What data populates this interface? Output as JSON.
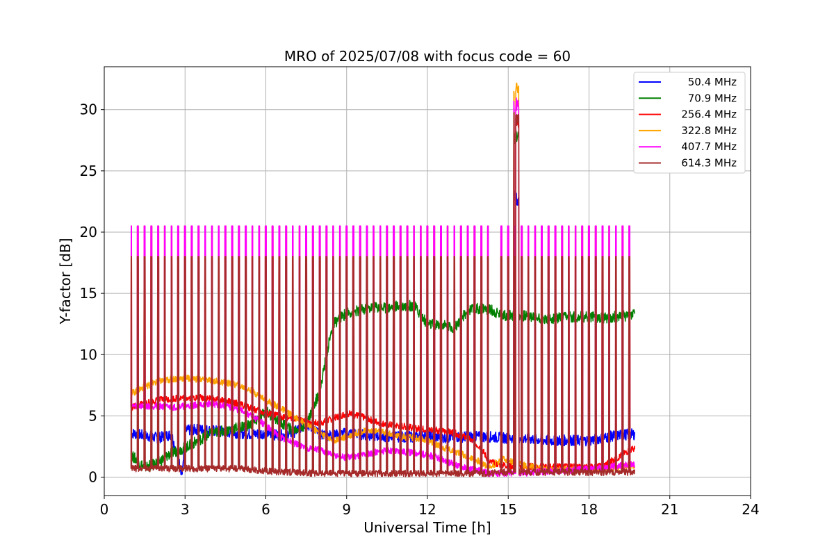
{
  "chart_data": {
    "type": "line",
    "title": "MRO of 2025/07/08 with focus code = 60",
    "xlabel": "Universal Time [h]",
    "ylabel": "Y-factor [dB]",
    "xlim": [
      0,
      24
    ],
    "ylim": [
      -1.5,
      33.5
    ],
    "xticks": [
      0,
      3,
      6,
      9,
      12,
      15,
      18,
      21,
      24
    ],
    "yticks": [
      0,
      5,
      10,
      15,
      20,
      25,
      30
    ],
    "grid": true,
    "legend_position": "top-right",
    "calibration_pulses": {
      "times": [
        1.0,
        1.25,
        1.5,
        1.75,
        2.0,
        2.25,
        2.5,
        2.75,
        3.0,
        3.25,
        3.5,
        3.75,
        4.0,
        4.25,
        4.5,
        4.75,
        5.0,
        5.25,
        5.5,
        5.75,
        6.0,
        6.25,
        6.5,
        6.75,
        7.0,
        7.25,
        7.5,
        7.75,
        8.0,
        8.25,
        8.5,
        8.75,
        9.0,
        9.25,
        9.5,
        9.75,
        10.0,
        10.25,
        10.5,
        10.75,
        11.0,
        11.25,
        11.5,
        11.75,
        12.0,
        12.25,
        12.5,
        12.75,
        13.0,
        13.25,
        13.5,
        13.75,
        14.0,
        14.25,
        14.75,
        15.0,
        15.25,
        15.5,
        15.75,
        16.0,
        16.25,
        16.5,
        16.75,
        17.0,
        17.25,
        17.5,
        17.75,
        18.0,
        18.25,
        18.5,
        18.75,
        19.0,
        19.25,
        19.5
      ],
      "peak_low_dB": 18.0,
      "peak_high_dB": 20.5
    },
    "flare": {
      "time": 15.3,
      "peaks_dB": {
        "50.4 MHz": 22.8,
        "70.9 MHz": 27.8,
        "256.4 MHz": 29.0,
        "322.8 MHz": 31.6,
        "407.7 MHz": 30.5,
        "614.3 MHz": 29.2
      }
    },
    "series": [
      {
        "name": "  50.4 MHz",
        "color": "#0000ff",
        "x": [
          1.0,
          1.5,
          2.0,
          2.5,
          2.9,
          3.0,
          3.5,
          4.0,
          4.5,
          5.0,
          5.5,
          6.0,
          6.5,
          7.0,
          7.5,
          8.0,
          8.5,
          9.0,
          9.5,
          10.0,
          10.5,
          11.0,
          11.5,
          12.0,
          12.5,
          13.0,
          13.5,
          14.0,
          14.3,
          14.8,
          15.5,
          16.0,
          16.5,
          17.0,
          17.5,
          18.0,
          18.5,
          19.0,
          19.5,
          19.7
        ],
        "y": [
          3.6,
          3.4,
          3.2,
          3.5,
          0.2,
          3.8,
          3.9,
          3.8,
          3.7,
          3.6,
          3.5,
          3.6,
          3.4,
          3.6,
          4.4,
          3.5,
          3.4,
          3.6,
          3.5,
          3.4,
          3.3,
          3.3,
          3.3,
          3.4,
          3.2,
          3.3,
          3.3,
          3.3,
          3.3,
          3.2,
          3.2,
          3.1,
          3.0,
          3.0,
          3.0,
          3.0,
          3.2,
          3.4,
          3.5,
          3.5
        ]
      },
      {
        "name": "  70.9 MHz",
        "color": "#008000",
        "x": [
          1.0,
          1.5,
          2.0,
          2.5,
          3.0,
          3.5,
          4.0,
          4.5,
          5.0,
          5.5,
          6.0,
          6.5,
          7.0,
          7.5,
          8.0,
          8.3,
          8.5,
          9.0,
          9.5,
          10.0,
          10.5,
          11.0,
          11.5,
          12.0,
          12.5,
          13.0,
          13.5,
          14.0,
          14.3,
          14.8,
          15.5,
          16.0,
          16.5,
          17.0,
          17.5,
          18.0,
          18.5,
          19.0,
          19.5,
          19.7
        ],
        "y": [
          1.8,
          0.8,
          1.2,
          2.0,
          2.4,
          3.0,
          3.6,
          3.8,
          4.1,
          4.3,
          5.4,
          4.5,
          3.8,
          4.3,
          7.0,
          10.5,
          12.5,
          13.4,
          13.6,
          13.9,
          13.8,
          14.0,
          14.0,
          12.5,
          12.4,
          12.2,
          13.6,
          13.8,
          13.7,
          13.2,
          13.2,
          13.1,
          12.9,
          13.0,
          13.1,
          13.1,
          13.0,
          13.1,
          13.2,
          13.5
        ]
      },
      {
        "name": "256.4 MHz",
        "color": "#ff0000",
        "x": [
          1.0,
          1.5,
          2.0,
          2.5,
          3.0,
          3.5,
          4.0,
          4.5,
          5.0,
          5.5,
          6.0,
          6.5,
          7.0,
          7.5,
          8.0,
          8.5,
          9.0,
          9.5,
          10.0,
          10.5,
          11.0,
          11.5,
          12.0,
          12.5,
          13.0,
          13.5,
          14.0,
          14.3,
          14.8,
          15.5,
          16.0,
          16.5,
          17.0,
          17.5,
          18.0,
          18.5,
          19.0,
          19.5,
          19.7
        ],
        "y": [
          5.7,
          6.0,
          6.3,
          6.4,
          6.5,
          6.5,
          6.4,
          6.2,
          6.0,
          5.6,
          5.2,
          5.0,
          4.8,
          4.5,
          4.4,
          4.8,
          5.2,
          5.0,
          4.6,
          4.3,
          4.2,
          4.0,
          3.9,
          3.8,
          3.6,
          3.2,
          2.4,
          1.2,
          1.0,
          0.8,
          0.9,
          0.8,
          0.9,
          0.8,
          0.8,
          0.9,
          1.5,
          2.2,
          2.3
        ]
      },
      {
        "name": "322.8 MHz",
        "color": "#ffa500",
        "x": [
          1.0,
          1.5,
          2.0,
          2.5,
          3.0,
          3.5,
          4.0,
          4.5,
          5.0,
          5.5,
          6.0,
          6.5,
          7.0,
          7.5,
          8.0,
          8.5,
          9.0,
          9.5,
          10.0,
          10.5,
          11.0,
          11.5,
          12.0,
          12.5,
          13.0,
          13.5,
          14.0,
          14.3,
          14.8,
          15.5,
          16.0,
          16.5,
          17.0,
          17.5,
          18.0,
          18.5,
          19.0,
          19.5,
          19.7
        ],
        "y": [
          6.8,
          7.4,
          7.8,
          8.0,
          8.1,
          8.0,
          7.9,
          7.7,
          7.5,
          7.0,
          6.3,
          5.7,
          5.0,
          4.3,
          3.6,
          3.0,
          3.3,
          3.7,
          3.8,
          3.6,
          3.3,
          3.2,
          3.0,
          2.5,
          2.1,
          1.7,
          1.2,
          0.8,
          1.5,
          1.0,
          0.8,
          0.6,
          0.6,
          0.6,
          0.6,
          0.7,
          0.8,
          0.9,
          1.0
        ]
      },
      {
        "name": "407.7 MHz",
        "color": "#ff00ff",
        "x": [
          1.0,
          1.5,
          2.0,
          2.5,
          3.0,
          3.5,
          4.0,
          4.5,
          5.0,
          5.5,
          6.0,
          6.5,
          7.0,
          7.5,
          8.0,
          8.5,
          9.0,
          9.5,
          10.0,
          10.5,
          11.0,
          11.5,
          12.0,
          12.5,
          13.0,
          13.5,
          14.0,
          14.3,
          14.8,
          15.5,
          16.0,
          16.5,
          17.0,
          17.5,
          18.0,
          18.5,
          19.0,
          19.5,
          19.7
        ],
        "y": [
          5.8,
          5.8,
          5.8,
          5.7,
          5.8,
          5.9,
          6.0,
          5.8,
          5.5,
          5.0,
          4.2,
          3.3,
          2.8,
          2.4,
          2.2,
          1.8,
          1.6,
          1.8,
          2.0,
          2.2,
          2.1,
          2.0,
          1.8,
          1.5,
          1.0,
          0.7,
          0.5,
          0.3,
          0.3,
          0.3,
          0.4,
          0.5,
          0.5,
          0.6,
          0.7,
          0.8,
          0.9,
          1.0,
          1.0
        ]
      },
      {
        "name": "614.3 MHz",
        "color": "#a52a2a",
        "x": [
          1.0,
          2.0,
          3.0,
          4.0,
          5.0,
          6.0,
          7.0,
          8.0,
          9.0,
          10.0,
          11.0,
          12.0,
          13.0,
          14.0,
          14.3,
          14.8,
          15.5,
          16.0,
          17.0,
          18.0,
          19.0,
          19.7
        ],
        "y": [
          0.7,
          0.7,
          0.7,
          0.7,
          0.7,
          0.5,
          0.4,
          0.3,
          0.3,
          0.3,
          0.3,
          0.3,
          0.3,
          0.3,
          0.3,
          0.4,
          0.4,
          0.4,
          0.4,
          0.4,
          0.4,
          0.4
        ]
      }
    ],
    "legend_entries": [
      "  50.4 MHz",
      "  70.9 MHz",
      "256.4 MHz",
      "322.8 MHz",
      "407.7 MHz",
      "614.3 MHz"
    ]
  }
}
